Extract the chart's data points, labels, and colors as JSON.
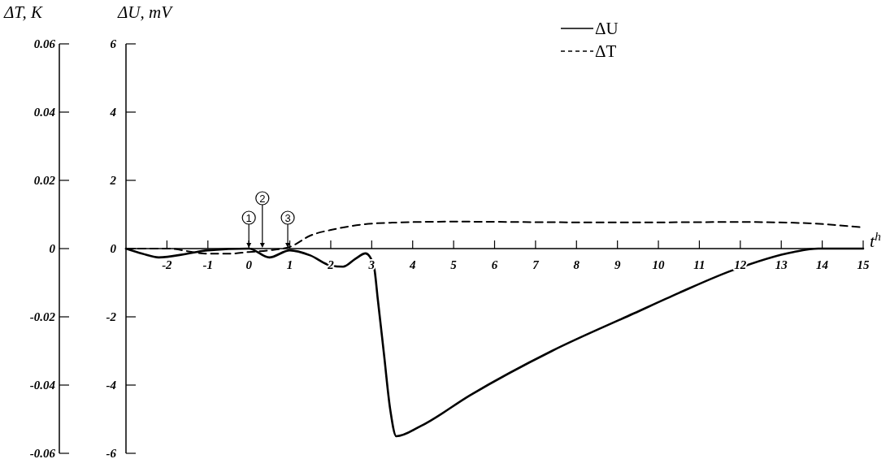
{
  "chart_data": {
    "type": "line",
    "xlabel": "t$^{h}$",
    "ylabel": "ΔU, mV",
    "y2label": "ΔT, K",
    "xlim": [
      -3,
      15
    ],
    "xticks": [
      -2,
      -1,
      0,
      1,
      2,
      3,
      4,
      5,
      6,
      7,
      8,
      9,
      10,
      11,
      12,
      13,
      14,
      15
    ],
    "ylim": [
      -6,
      6
    ],
    "yticks": [
      -6,
      -4,
      -2,
      0,
      2,
      4,
      6
    ],
    "y2lim": [
      -0.06,
      0.06
    ],
    "y2ticks": [
      -0.06,
      -0.04,
      -0.02,
      0,
      0.02,
      0.04,
      0.06
    ],
    "legend": "top right",
    "grid": false,
    "series": [
      {
        "name": "ΔU",
        "color": "#000000",
        "line_style": "solid",
        "x": [
          -3,
          -2.6,
          -2.2,
          -1.5,
          -1,
          0,
          0.5,
          1,
          1.5,
          2,
          2.3,
          2.6,
          2.85,
          3.05,
          3.15,
          3.3,
          3.45,
          3.6,
          4.2,
          5.4,
          7.4,
          9.4,
          10.5,
          11.8,
          13.3,
          13.9,
          15
        ],
        "values": [
          0,
          -0.15,
          -0.26,
          -0.15,
          -0.05,
          0,
          -0.26,
          -0.05,
          -0.2,
          -0.5,
          -0.53,
          -0.3,
          -0.14,
          -0.5,
          -1.5,
          -3.1,
          -4.7,
          -5.5,
          -5.2,
          -4.3,
          -3.0,
          -1.9,
          -1.3,
          -0.64,
          -0.1,
          0,
          0
        ]
      },
      {
        "name": "ΔT",
        "color": "#000000",
        "line_style": "dashed",
        "axis": "y2",
        "x": [
          -3,
          -2,
          -1,
          -0.5,
          0,
          0.5,
          1,
          1.5,
          2.1,
          2.8,
          3.5,
          5,
          8,
          10,
          12,
          13.5,
          15
        ],
        "values": [
          0,
          0,
          -0.0015,
          -0.0015,
          -0.001,
          -0.0005,
          0.0005,
          0.0038,
          0.0057,
          0.0071,
          0.0076,
          0.0079,
          0.0077,
          0.0077,
          0.0078,
          0.0075,
          0.0062
        ]
      }
    ],
    "annotations": [
      {
        "text": "1",
        "x": 0,
        "y": 0
      },
      {
        "text": "2",
        "x": 0.33,
        "y": 0
      },
      {
        "text": "3",
        "x": 0.95,
        "y": 0
      }
    ]
  }
}
